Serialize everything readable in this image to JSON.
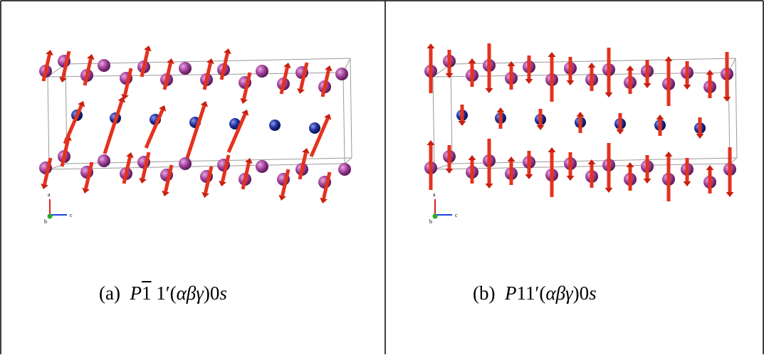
{
  "panels": [
    {
      "label": "(a)",
      "symbol_prefix": "P",
      "symbol_bar": "1",
      "symbol_rest": " 1′(",
      "symbol_greek": "αβγ",
      "symbol_tail": ")0",
      "symbol_s": "s",
      "moment_pattern": "canted",
      "axes": {
        "a": "a",
        "b": "b",
        "c": "c"
      }
    },
    {
      "label": "(b)",
      "symbol_prefix": "P",
      "symbol_bar": "",
      "symbol_rest": "11′(",
      "symbol_greek": "αβγ",
      "symbol_tail": ")0",
      "symbol_s": "s",
      "moment_pattern": "vertical",
      "axes": {
        "a": "a",
        "b": "b",
        "c": "c"
      }
    }
  ],
  "colors": {
    "border": "#000000",
    "cell_edge": "#9a9a9a",
    "magnetic_atom": "#a0409a",
    "nonmagnetic_atom": "#1e2f9a",
    "moment_arrow": "#e4321e",
    "axis_a": "#e02020",
    "axis_b": "#20b020",
    "axis_c": "#2040e0"
  }
}
